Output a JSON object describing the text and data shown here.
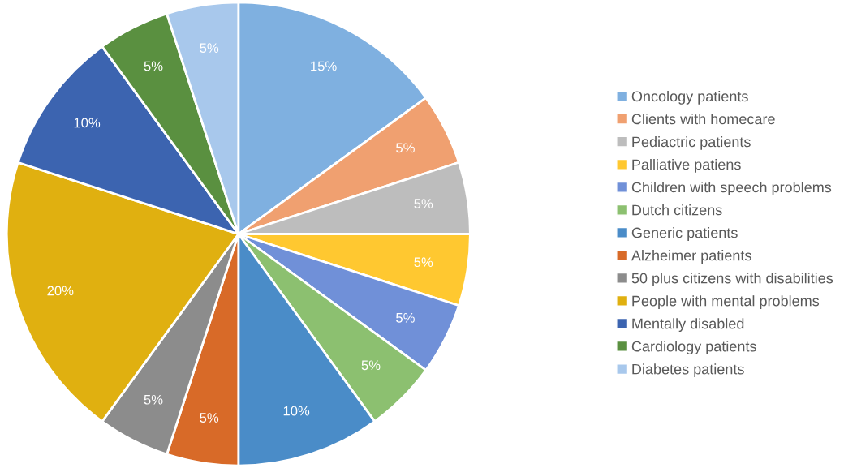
{
  "chart_data": {
    "type": "pie",
    "categories": [
      "Oncology patients",
      "Clients with homecare",
      "Pediactric patients",
      "Palliative patiens",
      "Children with speech problems",
      "Dutch citizens",
      "Generic patients",
      "Alzheimer patients",
      "50 plus citizens with disabilities",
      "People with mental problems",
      "Mentally disabled",
      "Cardiology patients",
      "Diabetes patients"
    ],
    "values": [
      15,
      5,
      5,
      5,
      5,
      5,
      10,
      5,
      5,
      20,
      10,
      5,
      5
    ],
    "colors": [
      "#7fb0e0",
      "#f0a070",
      "#bdbdbd",
      "#ffc830",
      "#7090d8",
      "#8cc070",
      "#4a8cc8",
      "#d86a28",
      "#8c8c8c",
      "#e0b010",
      "#3c64b0",
      "#5a9040",
      "#a8c8ec"
    ],
    "value_labels": [
      "15%",
      "5%",
      "5%",
      "5%",
      "5%",
      "5%",
      "10%",
      "5%",
      "5%",
      "20%",
      "10%",
      "5%",
      "5%"
    ],
    "legend": "right"
  }
}
